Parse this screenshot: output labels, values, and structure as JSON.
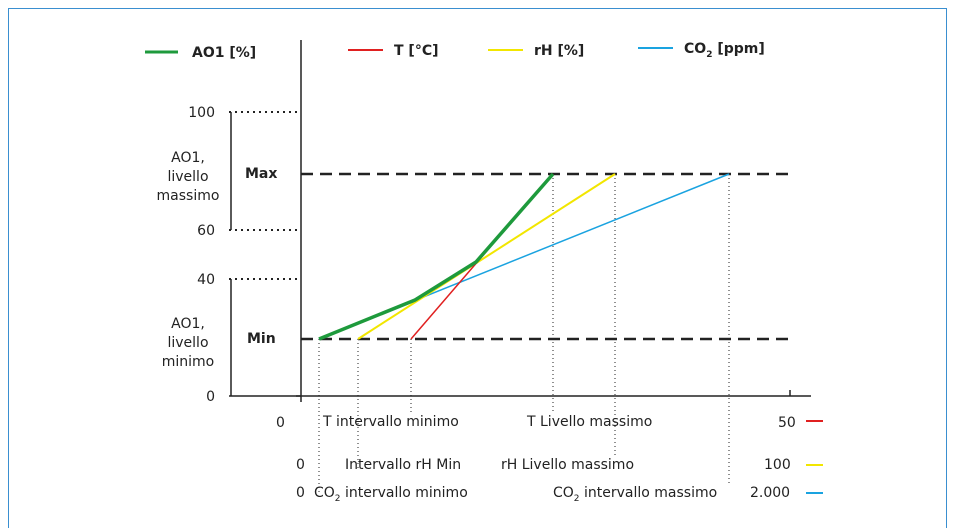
{
  "legend": [
    {
      "label": "AO1 [%]",
      "color": "#1e9a3c"
    },
    {
      "label": "T [°C]",
      "color": "#e02020"
    },
    {
      "label": "rH [%]",
      "color": "#f2e600"
    },
    {
      "label_main": "CO",
      "label_sub": "2",
      "label_rest": " [ppm]",
      "color": "#1aa3e0"
    }
  ],
  "y_ticks": [
    "100",
    "60",
    "40",
    "0"
  ],
  "levels": {
    "max": "Max",
    "min": "Min"
  },
  "y_group_max": [
    "AO1,",
    "livello",
    "massimo"
  ],
  "y_group_min": [
    "AO1,",
    "livello",
    "minimo"
  ],
  "x_rows": {
    "t": {
      "start": "0",
      "min_label": "T intervallo minimo",
      "max_label": "T Livello massimo",
      "end": "50"
    },
    "rh": {
      "start": "0",
      "min_label": "Intervallo rH Min",
      "max_label": "rH Livello massimo",
      "end": "100"
    },
    "co2": {
      "start": "0",
      "min_main": "CO",
      "min_sub": "2",
      "min_rest": " intervallo minimo",
      "max_main": "CO",
      "max_sub": "2",
      "max_rest": " intervallo massimo",
      "end": "2.000"
    }
  }
}
